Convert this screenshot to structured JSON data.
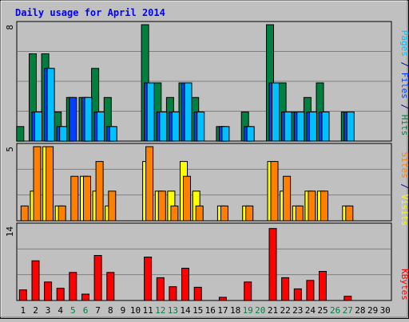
{
  "title": "Daily usage for April 2014",
  "right_labels": {
    "top": [
      {
        "text": "Pages",
        "color": "#00c0ff"
      },
      {
        "text": " / ",
        "color": "#000080"
      },
      {
        "text": "Files",
        "color": "#0040ff"
      },
      {
        "text": " / ",
        "color": "#000080"
      },
      {
        "text": "Hits",
        "color": "#008040"
      }
    ],
    "middle": [
      {
        "text": "Sites",
        "color": "#ff8000"
      },
      {
        "text": " / ",
        "color": "#000080"
      },
      {
        "text": "Visits",
        "color": "#ffff00"
      }
    ],
    "bottom": [
      {
        "text": "KBytes",
        "color": "#ff0000"
      }
    ]
  },
  "colors": {
    "background": "#c0c0c0",
    "plot_bg": "#c0c0c0",
    "grid": "#808080",
    "title": "#0000ff",
    "hits": "#008040",
    "files": "#0040ff",
    "pages": "#00c0ff",
    "visits": "#ffff00",
    "sites": "#ff8000",
    "kbytes": "#ff0000",
    "weekend_day": "#008040"
  },
  "chart_data": [
    {
      "type": "bar",
      "title": "Daily usage for April 2014",
      "categories": [
        "1",
        "2",
        "3",
        "4",
        "5",
        "6",
        "7",
        "8",
        "9",
        "10",
        "11",
        "12",
        "13",
        "14",
        "15",
        "16",
        "17",
        "18",
        "19",
        "20",
        "21",
        "22",
        "23",
        "24",
        "25",
        "26",
        "27",
        "28",
        "29",
        "30"
      ],
      "weekend_days": [
        "5",
        "6",
        "12",
        "13",
        "19",
        "20",
        "26",
        "27"
      ],
      "ylabel": "Pages / Files / Hits",
      "ylim": [
        0,
        8
      ],
      "y_tick_label": "8",
      "series": [
        {
          "name": "Hits",
          "values": [
            1,
            6,
            6,
            2,
            3,
            3,
            5,
            3,
            0,
            0,
            8,
            4,
            3,
            4,
            3,
            0,
            1,
            0,
            2,
            0,
            8,
            4,
            2,
            3,
            4,
            0,
            2,
            0,
            0,
            0
          ]
        },
        {
          "name": "Files",
          "values": [
            0,
            2,
            5,
            1,
            3,
            3,
            2,
            1,
            0,
            0,
            4,
            2,
            2,
            4,
            2,
            0,
            1,
            0,
            1,
            0,
            4,
            2,
            2,
            2,
            2,
            0,
            2,
            0,
            0,
            0
          ]
        },
        {
          "name": "Pages",
          "values": [
            0,
            2,
            5,
            1,
            0,
            3,
            2,
            1,
            0,
            0,
            4,
            2,
            2,
            4,
            2,
            0,
            1,
            0,
            1,
            0,
            4,
            2,
            2,
            2,
            2,
            0,
            2,
            0,
            0,
            0
          ]
        }
      ]
    },
    {
      "type": "bar",
      "categories": [
        "1",
        "2",
        "3",
        "4",
        "5",
        "6",
        "7",
        "8",
        "9",
        "10",
        "11",
        "12",
        "13",
        "14",
        "15",
        "16",
        "17",
        "18",
        "19",
        "20",
        "21",
        "22",
        "23",
        "24",
        "25",
        "26",
        "27",
        "28",
        "29",
        "30"
      ],
      "ylabel": "Sites / Visits",
      "ylim": [
        0,
        5
      ],
      "y_tick_label": "5",
      "series": [
        {
          "name": "Visits",
          "values": [
            0,
            2,
            5,
            1,
            0,
            3,
            2,
            1,
            0,
            0,
            4,
            2,
            2,
            4,
            2,
            0,
            1,
            0,
            1,
            0,
            4,
            2,
            1,
            2,
            2,
            0,
            1,
            0,
            0,
            0
          ]
        },
        {
          "name": "Sites",
          "values": [
            1,
            5,
            5,
            1,
            3,
            3,
            4,
            2,
            0,
            0,
            5,
            2,
            1,
            3,
            1,
            0,
            1,
            0,
            1,
            0,
            4,
            3,
            1,
            2,
            2,
            0,
            1,
            0,
            0,
            0
          ]
        }
      ]
    },
    {
      "type": "bar",
      "categories": [
        "1",
        "2",
        "3",
        "4",
        "5",
        "6",
        "7",
        "8",
        "9",
        "10",
        "11",
        "12",
        "13",
        "14",
        "15",
        "16",
        "17",
        "18",
        "19",
        "20",
        "21",
        "22",
        "23",
        "24",
        "25",
        "26",
        "27",
        "28",
        "29",
        "30"
      ],
      "ylabel": "KBytes",
      "ylim": [
        0,
        14
      ],
      "y_tick_label": "14",
      "series": [
        {
          "name": "KBytes",
          "values": [
            2,
            7.5,
            3.5,
            2.3,
            5.3,
            1.2,
            8.5,
            5.3,
            0,
            0,
            8.2,
            4.3,
            2.6,
            6.1,
            2.5,
            0,
            0.6,
            0,
            3.5,
            0,
            13.6,
            4.3,
            2.2,
            3.8,
            5.5,
            0,
            0.8,
            0,
            0,
            0
          ]
        }
      ]
    }
  ]
}
